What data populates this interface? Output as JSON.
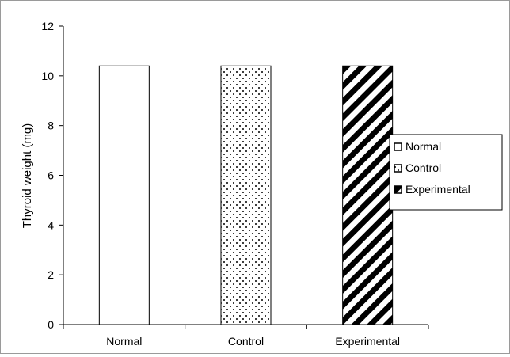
{
  "chart_data": {
    "type": "bar",
    "categories": [
      "Normal",
      "Control",
      "Experimental"
    ],
    "series": [
      {
        "name": "Normal",
        "category": "Normal",
        "value": 10.4,
        "pattern": "none"
      },
      {
        "name": "Control",
        "category": "Control",
        "value": 10.4,
        "pattern": "dots"
      },
      {
        "name": "Experimental",
        "category": "Experimental",
        "value": 10.4,
        "pattern": "diagonal-stripes"
      }
    ],
    "ylabel": "Thyroid weight (mg)",
    "xlabel": "",
    "ylim": [
      0,
      12
    ],
    "yticks": [
      0,
      2,
      4,
      6,
      8,
      10,
      12
    ],
    "grid": false,
    "legend_position": "right",
    "colors": {
      "bar_fill": "#ffffff",
      "bar_stroke": "#000000",
      "pattern_ink": "#000000",
      "frame": "#9a9a9a"
    }
  }
}
